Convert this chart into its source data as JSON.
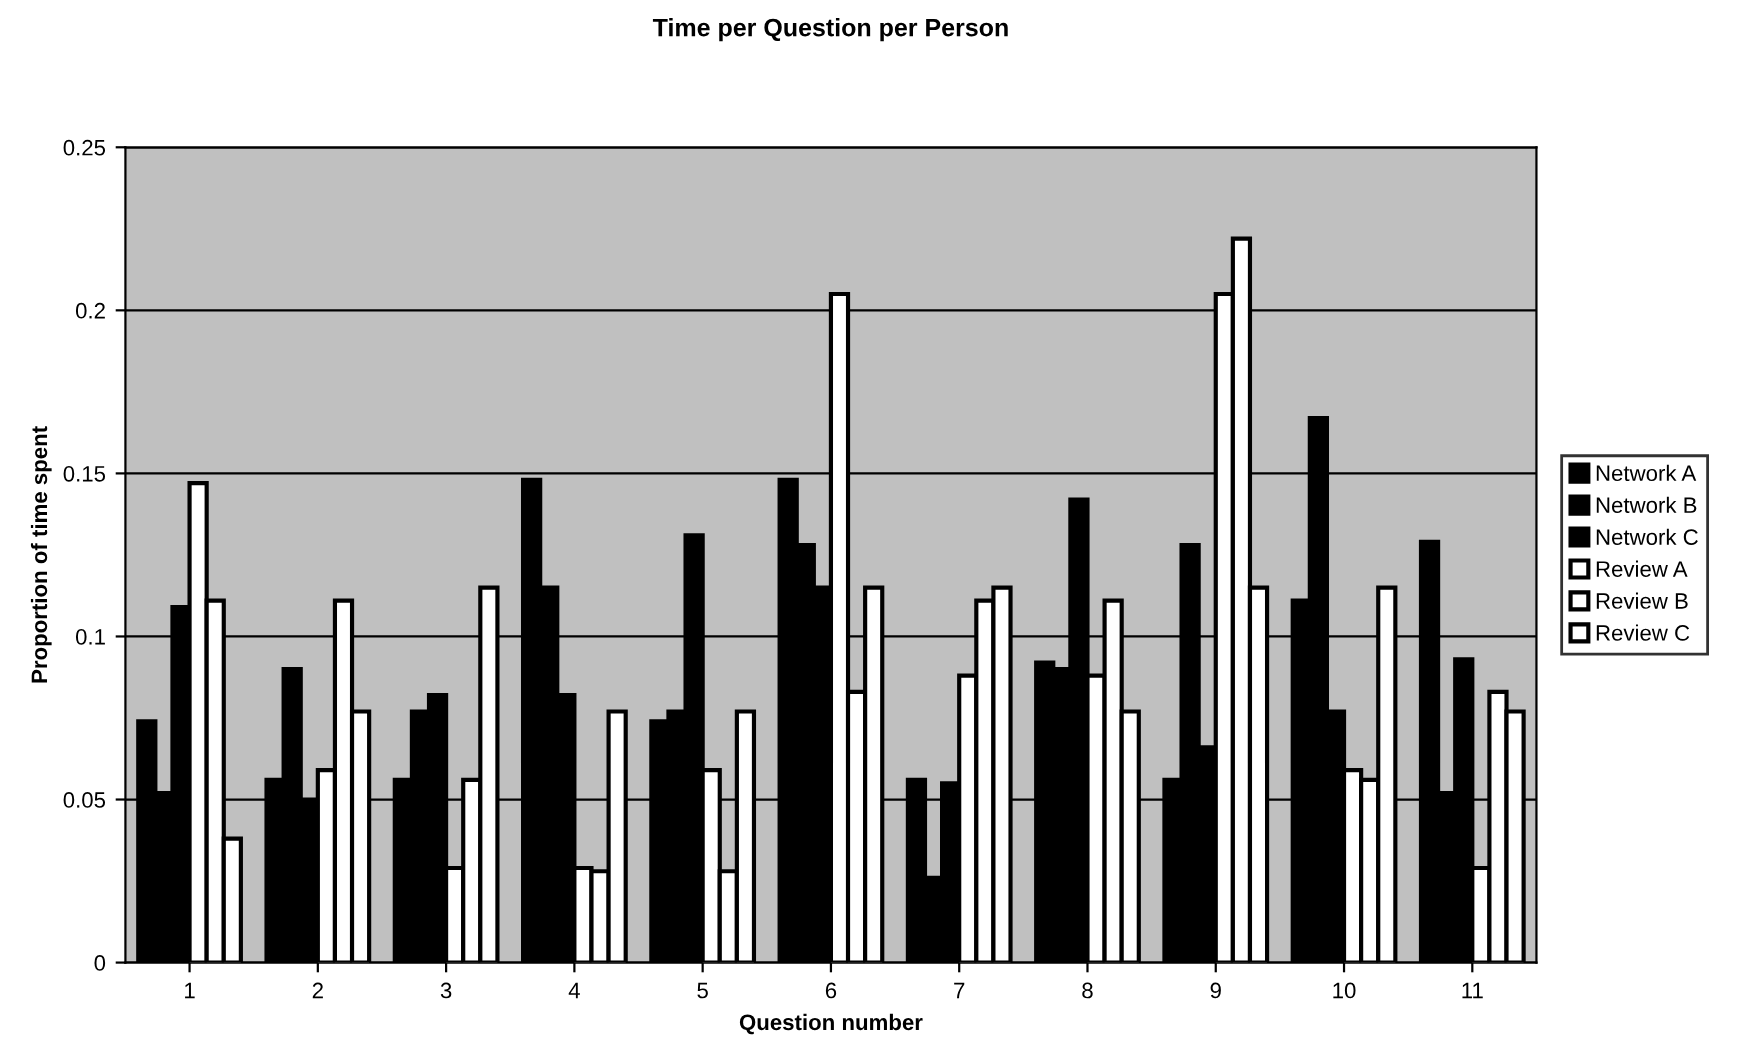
{
  "chart_data": {
    "type": "bar",
    "title": "Time per Question per Person",
    "xlabel": "Question number",
    "ylabel": "Proportion of time spent",
    "categories": [
      "1",
      "2",
      "3",
      "4",
      "5",
      "6",
      "7",
      "8",
      "9",
      "10",
      "11"
    ],
    "series": [
      {
        "name": "Network A",
        "color": "#000000",
        "values": [
          0.074,
          0.056,
          0.056,
          0.148,
          0.074,
          0.148,
          0.056,
          0.092,
          0.056,
          0.111,
          0.129
        ]
      },
      {
        "name": "Network B",
        "color": "#000000",
        "values": [
          0.052,
          0.09,
          0.077,
          0.115,
          0.077,
          0.128,
          0.026,
          0.09,
          0.128,
          0.167,
          0.052
        ]
      },
      {
        "name": "Network C",
        "color": "#000000",
        "values": [
          0.109,
          0.05,
          0.082,
          0.082,
          0.131,
          0.115,
          0.055,
          0.142,
          0.066,
          0.077,
          0.093
        ]
      },
      {
        "name": "Review A",
        "color": "#ffffff",
        "values": [
          0.147,
          0.059,
          0.029,
          0.029,
          0.059,
          0.205,
          0.088,
          0.088,
          0.205,
          0.059,
          0.029
        ]
      },
      {
        "name": "Review B",
        "color": "#ffffff",
        "values": [
          0.111,
          0.111,
          0.056,
          0.028,
          0.028,
          0.083,
          0.111,
          0.111,
          0.222,
          0.056,
          0.083
        ]
      },
      {
        "name": "Review C",
        "color": "#ffffff",
        "values": [
          0.038,
          0.077,
          0.115,
          0.077,
          0.077,
          0.115,
          0.115,
          0.077,
          0.115,
          0.115,
          0.077
        ]
      }
    ],
    "ylim": [
      0,
      0.25
    ],
    "yticks": [
      {
        "value": 0,
        "label": "0"
      },
      0.05,
      0.1,
      0.15,
      0.2,
      0.25
    ],
    "grid": "y",
    "legend": "right"
  }
}
